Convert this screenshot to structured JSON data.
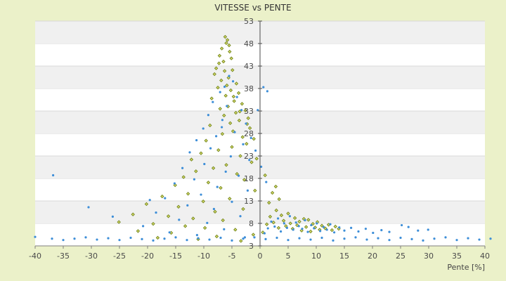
{
  "chart_data": {
    "type": "scatter",
    "title": "VITESSE vs PENTE",
    "xlabel": "Pente [%]",
    "ylabel": "",
    "xlim": [
      -40,
      40
    ],
    "ylim": [
      3,
      53
    ],
    "x_ticks": [
      -40,
      -35,
      -30,
      -25,
      -20,
      -15,
      -10,
      -5,
      0,
      5,
      10,
      15,
      20,
      25,
      30,
      35,
      40
    ],
    "y_ticks": [
      3,
      8,
      13,
      18,
      23,
      28,
      33,
      38,
      43,
      48,
      53
    ],
    "grid": true,
    "legend": "none",
    "series_colors": [
      "#6a7f14",
      "#3d8ed8"
    ],
    "series": [
      {
        "points": [
          [
            -6.2,
            49.5
          ],
          [
            -5.8,
            48.8
          ],
          [
            -5.5,
            47.6
          ],
          [
            -6.8,
            46.9
          ],
          [
            -7.2,
            45.3
          ],
          [
            -5.1,
            44.7
          ],
          [
            -6.5,
            44.0
          ],
          [
            -7.8,
            42.5
          ],
          [
            -4.9,
            42.1
          ],
          [
            -8.1,
            41.2
          ],
          [
            -5.6,
            40.4
          ],
          [
            -6.9,
            39.8
          ],
          [
            -4.2,
            39.1
          ],
          [
            -7.5,
            38.2
          ],
          [
            -5.2,
            37.6
          ],
          [
            -3.8,
            37.0
          ],
          [
            -6.1,
            36.4
          ],
          [
            -8.6,
            35.8
          ],
          [
            -4.6,
            35.2
          ],
          [
            -3.2,
            34.6
          ],
          [
            -5.7,
            34.0
          ],
          [
            -7.1,
            33.5
          ],
          [
            -2.6,
            33.1
          ],
          [
            -4.3,
            32.6
          ],
          [
            -6.4,
            32.0
          ],
          [
            -2.1,
            31.4
          ],
          [
            -3.7,
            30.9
          ],
          [
            -5.3,
            30.3
          ],
          [
            -8.9,
            29.8
          ],
          [
            -1.8,
            29.2
          ],
          [
            -4.8,
            28.5
          ],
          [
            -6.7,
            27.9
          ],
          [
            -3.1,
            27.2
          ],
          [
            -9.6,
            26.4
          ],
          [
            -2.4,
            25.7
          ],
          [
            -5.0,
            25.0
          ],
          [
            -7.4,
            24.3
          ],
          [
            -10.5,
            23.6
          ],
          [
            -3.5,
            23.0
          ],
          [
            -12.2,
            22.2
          ],
          [
            -1.5,
            21.6
          ],
          [
            -6.0,
            21.0
          ],
          [
            -8.3,
            20.3
          ],
          [
            -11.4,
            19.6
          ],
          [
            -4.1,
            19.0
          ],
          [
            -13.6,
            18.3
          ],
          [
            -2.8,
            17.7
          ],
          [
            -9.2,
            17.1
          ],
          [
            -15.1,
            16.5
          ],
          [
            -7.0,
            15.9
          ],
          [
            -0.9,
            15.3
          ],
          [
            -12.8,
            14.6
          ],
          [
            -17.4,
            14.0
          ],
          [
            -5.4,
            13.5
          ],
          [
            -10.1,
            12.9
          ],
          [
            -20.2,
            12.3
          ],
          [
            -14.5,
            11.7
          ],
          [
            -3.0,
            11.2
          ],
          [
            -8.0,
            10.6
          ],
          [
            -22.6,
            10.0
          ],
          [
            -16.3,
            9.6
          ],
          [
            -11.9,
            9.1
          ],
          [
            -6.6,
            8.7
          ],
          [
            -25.1,
            8.3
          ],
          [
            -19.0,
            7.9
          ],
          [
            -13.3,
            7.4
          ],
          [
            -9.8,
            7.0
          ],
          [
            -4.4,
            6.6
          ],
          [
            -21.7,
            6.3
          ],
          [
            -15.8,
            5.9
          ],
          [
            -1.2,
            5.5
          ],
          [
            -7.7,
            5.1
          ],
          [
            -18.2,
            4.8
          ],
          [
            -11.0,
            4.5
          ],
          [
            -3.4,
            4.1
          ],
          [
            0.5,
            6.0
          ],
          [
            1.2,
            7.8
          ],
          [
            1.8,
            9.5
          ],
          [
            2.4,
            8.2
          ],
          [
            2.9,
            10.9
          ],
          [
            3.3,
            7.0
          ],
          [
            3.8,
            9.8
          ],
          [
            4.2,
            8.6
          ],
          [
            4.6,
            7.4
          ],
          [
            5.0,
            10.2
          ],
          [
            5.4,
            8.0
          ],
          [
            5.8,
            6.8
          ],
          [
            6.2,
            9.2
          ],
          [
            6.6,
            7.6
          ],
          [
            7.0,
            8.4
          ],
          [
            7.4,
            6.4
          ],
          [
            7.8,
            9.0
          ],
          [
            8.2,
            7.2
          ],
          [
            8.6,
            8.8
          ],
          [
            9.0,
            6.2
          ],
          [
            9.4,
            7.9
          ],
          [
            9.8,
            7.1
          ],
          [
            10.2,
            8.3
          ],
          [
            10.6,
            6.6
          ],
          [
            11.0,
            7.5
          ],
          [
            11.6,
            6.9
          ],
          [
            12.2,
            7.7
          ],
          [
            12.8,
            6.5
          ],
          [
            13.4,
            7.3
          ],
          [
            14.0,
            6.8
          ],
          [
            1.6,
            12.6
          ],
          [
            2.2,
            14.8
          ],
          [
            2.8,
            16.2
          ],
          [
            3.4,
            13.4
          ],
          [
            0.9,
            18.7
          ],
          [
            -0.6,
            22.4
          ],
          [
            -1.1,
            26.8
          ],
          [
            -2.3,
            30.1
          ],
          [
            -3.6,
            32.9
          ],
          [
            -4.7,
            36.2
          ],
          [
            -5.9,
            38.7
          ],
          [
            -6.3,
            41.9
          ],
          [
            -7.3,
            43.6
          ],
          [
            -5.4,
            46.2
          ],
          [
            -6.0,
            48.1
          ]
        ]
      },
      {
        "points": [
          [
            -5.5,
            40.8
          ],
          [
            -4.8,
            39.6
          ],
          [
            -6.3,
            38.4
          ],
          [
            -7.1,
            37.2
          ],
          [
            -4.1,
            36.1
          ],
          [
            -8.4,
            35.0
          ],
          [
            -5.9,
            34.1
          ],
          [
            -3.3,
            33.2
          ],
          [
            -9.2,
            32.1
          ],
          [
            -6.7,
            31.0
          ],
          [
            -2.5,
            30.2
          ],
          [
            -10.1,
            29.1
          ],
          [
            -4.5,
            28.3
          ],
          [
            -7.8,
            27.4
          ],
          [
            -11.3,
            26.5
          ],
          [
            -3.0,
            25.6
          ],
          [
            -8.8,
            24.7
          ],
          [
            -12.5,
            23.8
          ],
          [
            -5.2,
            22.9
          ],
          [
            -1.9,
            22.1
          ],
          [
            -9.9,
            21.2
          ],
          [
            -13.8,
            20.3
          ],
          [
            -6.1,
            19.5
          ],
          [
            -3.8,
            18.6
          ],
          [
            -11.7,
            17.8
          ],
          [
            -15.2,
            16.9
          ],
          [
            -7.6,
            16.1
          ],
          [
            -2.2,
            15.3
          ],
          [
            -10.5,
            14.4
          ],
          [
            -16.9,
            13.6
          ],
          [
            -5.0,
            12.8
          ],
          [
            -12.9,
            12.0
          ],
          [
            -8.2,
            11.2
          ],
          [
            -18.5,
            10.4
          ],
          [
            -3.5,
            9.6
          ],
          [
            -14.4,
            8.8
          ],
          [
            -9.4,
            8.1
          ],
          [
            -20.8,
            7.4
          ],
          [
            -6.4,
            6.7
          ],
          [
            -16.1,
            6.0
          ],
          [
            -11.2,
            5.4
          ],
          [
            -2.7,
            4.9
          ],
          [
            -40.0,
            5.0
          ],
          [
            -37.0,
            4.6
          ],
          [
            -35.0,
            4.3
          ],
          [
            -33.0,
            4.6
          ],
          [
            -31.0,
            4.9
          ],
          [
            -29.0,
            4.4
          ],
          [
            -27.0,
            4.7
          ],
          [
            -25.0,
            4.3
          ],
          [
            -23.0,
            4.8
          ],
          [
            -21.0,
            4.5
          ],
          [
            -19.0,
            4.2
          ],
          [
            -17.0,
            4.6
          ],
          [
            -15.0,
            4.9
          ],
          [
            -13.0,
            4.3
          ],
          [
            -11.0,
            4.7
          ],
          [
            -9.0,
            4.4
          ],
          [
            -7.0,
            4.8
          ],
          [
            -5.0,
            4.2
          ],
          [
            -3.0,
            4.6
          ],
          [
            -1.0,
            4.9
          ],
          [
            1.0,
            4.5
          ],
          [
            3.0,
            4.8
          ],
          [
            5.0,
            4.3
          ],
          [
            7.0,
            4.7
          ],
          [
            9.0,
            4.4
          ],
          [
            11.0,
            4.8
          ],
          [
            13.0,
            4.2
          ],
          [
            15.0,
            4.6
          ],
          [
            17.0,
            4.9
          ],
          [
            19.0,
            4.4
          ],
          [
            21.0,
            4.7
          ],
          [
            23.0,
            4.3
          ],
          [
            25.0,
            4.8
          ],
          [
            27.0,
            4.5
          ],
          [
            29.0,
            4.2
          ],
          [
            31.0,
            4.6
          ],
          [
            33.0,
            4.9
          ],
          [
            35.0,
            4.3
          ],
          [
            37.0,
            4.7
          ],
          [
            39.0,
            4.4
          ],
          [
            41.0,
            4.6
          ],
          [
            -36.8,
            18.7
          ],
          [
            -30.5,
            11.6
          ],
          [
            -26.2,
            9.5
          ],
          [
            -19.6,
            13.2
          ],
          [
            0.8,
            5.8
          ],
          [
            1.4,
            6.9
          ],
          [
            2.0,
            8.4
          ],
          [
            2.6,
            7.3
          ],
          [
            3.2,
            9.1
          ],
          [
            3.7,
            6.2
          ],
          [
            4.3,
            8.0
          ],
          [
            4.8,
            7.0
          ],
          [
            5.3,
            9.6
          ],
          [
            5.9,
            6.6
          ],
          [
            6.4,
            8.2
          ],
          [
            6.9,
            7.4
          ],
          [
            7.5,
            6.8
          ],
          [
            8.0,
            8.7
          ],
          [
            8.5,
            6.1
          ],
          [
            9.1,
            7.6
          ],
          [
            9.6,
            6.9
          ],
          [
            10.1,
            8.0
          ],
          [
            10.7,
            6.3
          ],
          [
            11.3,
            7.2
          ],
          [
            11.9,
            6.6
          ],
          [
            12.5,
            7.8
          ],
          [
            13.2,
            6.0
          ],
          [
            14.1,
            7.1
          ],
          [
            15.0,
            6.4
          ],
          [
            16.2,
            7.0
          ],
          [
            17.5,
            6.2
          ],
          [
            18.8,
            6.8
          ],
          [
            20.1,
            5.9
          ],
          [
            21.6,
            6.5
          ],
          [
            23.0,
            6.1
          ],
          [
            25.2,
            7.6
          ],
          [
            26.4,
            7.2
          ],
          [
            28.1,
            6.4
          ],
          [
            29.9,
            6.6
          ],
          [
            0.6,
            38.3
          ],
          [
            1.3,
            37.4
          ],
          [
            -0.4,
            33.2
          ],
          [
            -1.6,
            27.0
          ],
          [
            -0.8,
            24.2
          ],
          [
            0.2,
            20.6
          ],
          [
            1.1,
            17.2
          ],
          [
            -6.8,
            29.4
          ]
        ]
      }
    ]
  }
}
